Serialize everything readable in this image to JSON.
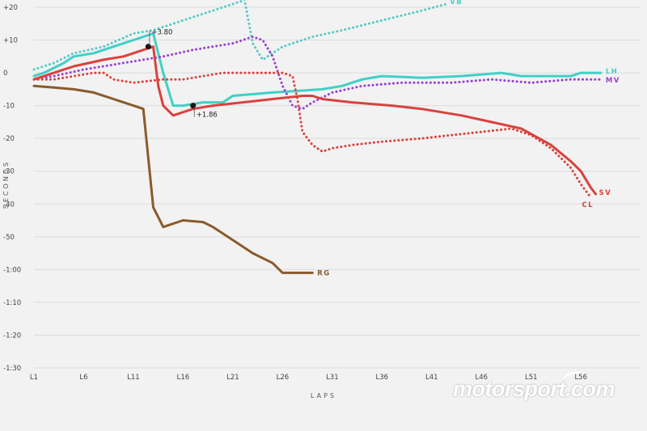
{
  "chart_data": {
    "type": "line",
    "xlabel": "LAPS",
    "ylabel": "SECONDS",
    "x_ticks": [
      "L1",
      "L6",
      "L11",
      "L16",
      "L21",
      "L26",
      "L31",
      "L36",
      "L41",
      "L46",
      "L51",
      "L56"
    ],
    "x_tick_laps": [
      1,
      6,
      11,
      16,
      21,
      26,
      31,
      36,
      41,
      46,
      51,
      56
    ],
    "y_ticks": [
      "+20",
      "+10",
      "0",
      "-10",
      "-20",
      "-30",
      "-40",
      "-50",
      "-1:00",
      "-1:10",
      "-1:20",
      "-1:30"
    ],
    "y_tick_values": [
      20,
      10,
      0,
      -10,
      -20,
      -30,
      -40,
      -50,
      -60,
      -70,
      -80,
      -90
    ],
    "xlim": [
      1,
      62
    ],
    "ylim": [
      -90,
      20
    ],
    "grid": "horizontal",
    "series": [
      {
        "name": "VB",
        "color": "#52cbc3",
        "style": "dotted",
        "points": [
          [
            1,
            1
          ],
          [
            3,
            3
          ],
          [
            5,
            6
          ],
          [
            8,
            8
          ],
          [
            11,
            12
          ],
          [
            13,
            13
          ],
          [
            16,
            16
          ],
          [
            19,
            19
          ],
          [
            22,
            22
          ],
          [
            22,
            25
          ],
          [
            23,
            9
          ],
          [
            24,
            4
          ],
          [
            26,
            8
          ],
          [
            29,
            11
          ],
          [
            32,
            13
          ],
          [
            36,
            16
          ],
          [
            40,
            19
          ],
          [
            42.5,
            21
          ]
        ]
      },
      {
        "name": "LH",
        "color": "#40d0c6",
        "style": "solid",
        "points": [
          [
            1,
            -1
          ],
          [
            2,
            0
          ],
          [
            4,
            3
          ],
          [
            5,
            5
          ],
          [
            7,
            6
          ],
          [
            10,
            9
          ],
          [
            12,
            11
          ],
          [
            13,
            12
          ],
          [
            14,
            0
          ],
          [
            15,
            -10
          ],
          [
            16,
            -10
          ],
          [
            18,
            -9
          ],
          [
            20,
            -9
          ],
          [
            21,
            -7
          ],
          [
            25,
            -6
          ],
          [
            30,
            -5
          ],
          [
            32,
            -4
          ],
          [
            34,
            -2
          ],
          [
            36,
            -1
          ],
          [
            40,
            -1.5
          ],
          [
            44,
            -1
          ],
          [
            48,
            0
          ],
          [
            50,
            -1
          ],
          [
            53,
            -1
          ],
          [
            55,
            -1
          ],
          [
            56,
            0
          ],
          [
            57,
            0
          ],
          [
            58,
            0
          ]
        ]
      },
      {
        "name": "MV",
        "color": "#9940d0",
        "style": "dotted",
        "points": [
          [
            1,
            -2
          ],
          [
            3,
            -1
          ],
          [
            6,
            1
          ],
          [
            10,
            3
          ],
          [
            14,
            5
          ],
          [
            17,
            7
          ],
          [
            21,
            9
          ],
          [
            23,
            11
          ],
          [
            24,
            10
          ],
          [
            25,
            5
          ],
          [
            26,
            -4
          ],
          [
            27,
            -10
          ],
          [
            28,
            -11
          ],
          [
            29,
            -9
          ],
          [
            31,
            -6
          ],
          [
            34,
            -4
          ],
          [
            38,
            -3
          ],
          [
            43,
            -3
          ],
          [
            47,
            -2
          ],
          [
            51,
            -3
          ],
          [
            55,
            -2
          ],
          [
            58,
            -2
          ]
        ]
      },
      {
        "name": "SV",
        "color": "#d9423e",
        "style": "solid",
        "points": [
          [
            1,
            -2
          ],
          [
            3,
            0
          ],
          [
            5,
            2
          ],
          [
            8,
            4
          ],
          [
            10,
            5
          ],
          [
            11,
            6
          ],
          [
            12,
            7
          ],
          [
            13,
            8
          ],
          [
            13.5,
            -4
          ],
          [
            14,
            -10
          ],
          [
            15,
            -13
          ],
          [
            16,
            -12
          ],
          [
            17,
            -11
          ],
          [
            19,
            -10
          ],
          [
            22,
            -9
          ],
          [
            25,
            -8
          ],
          [
            28,
            -7
          ],
          [
            29,
            -7
          ],
          [
            30,
            -8
          ],
          [
            33,
            -9
          ],
          [
            37,
            -10
          ],
          [
            40,
            -11
          ],
          [
            44,
            -13
          ],
          [
            47,
            -15
          ],
          [
            50,
            -17
          ],
          [
            53,
            -22
          ],
          [
            55,
            -27
          ],
          [
            56,
            -30
          ],
          [
            57,
            -35
          ],
          [
            57.5,
            -37
          ]
        ]
      },
      {
        "name": "CL",
        "color": "#d9423e",
        "style": "dotted",
        "points": [
          [
            1,
            -2
          ],
          [
            3,
            -2
          ],
          [
            5,
            -1
          ],
          [
            7,
            0
          ],
          [
            8,
            0
          ],
          [
            9,
            -2
          ],
          [
            11,
            -3
          ],
          [
            14,
            -2
          ],
          [
            16,
            -2
          ],
          [
            18,
            -1
          ],
          [
            20,
            0
          ],
          [
            22,
            0
          ],
          [
            26,
            0
          ],
          [
            27,
            -1
          ],
          [
            27.5,
            -8
          ],
          [
            28,
            -18
          ],
          [
            29,
            -22
          ],
          [
            30,
            -24
          ],
          [
            31,
            -23
          ],
          [
            33,
            -22
          ],
          [
            36,
            -21
          ],
          [
            40,
            -20
          ],
          [
            43,
            -19
          ],
          [
            46,
            -18
          ],
          [
            49,
            -17
          ],
          [
            51,
            -19
          ],
          [
            53,
            -23
          ],
          [
            55,
            -29
          ],
          [
            56,
            -34
          ],
          [
            57,
            -38
          ]
        ]
      },
      {
        "name": "RG",
        "color": "#8b5a2b",
        "style": "solid",
        "points": [
          [
            1,
            -4
          ],
          [
            3,
            -4.5
          ],
          [
            5,
            -5
          ],
          [
            7,
            -6
          ],
          [
            9,
            -8
          ],
          [
            10,
            -9
          ],
          [
            11,
            -10
          ],
          [
            12,
            -11
          ],
          [
            13,
            -41
          ],
          [
            14,
            -47
          ],
          [
            15,
            -46
          ],
          [
            16,
            -45
          ],
          [
            18,
            -45.5
          ],
          [
            19,
            -47
          ],
          [
            21,
            -51
          ],
          [
            23,
            -55
          ],
          [
            25,
            -58
          ],
          [
            26,
            -61
          ],
          [
            27,
            -61
          ],
          [
            28,
            -61
          ],
          [
            29,
            -61
          ]
        ]
      }
    ],
    "annotations": [
      {
        "text": "+3.80",
        "x": 12.5,
        "y": 8
      },
      {
        "text": "+1.86",
        "x": 17,
        "y": -10
      }
    ]
  },
  "watermark": {
    "text": "motorsport.com"
  }
}
